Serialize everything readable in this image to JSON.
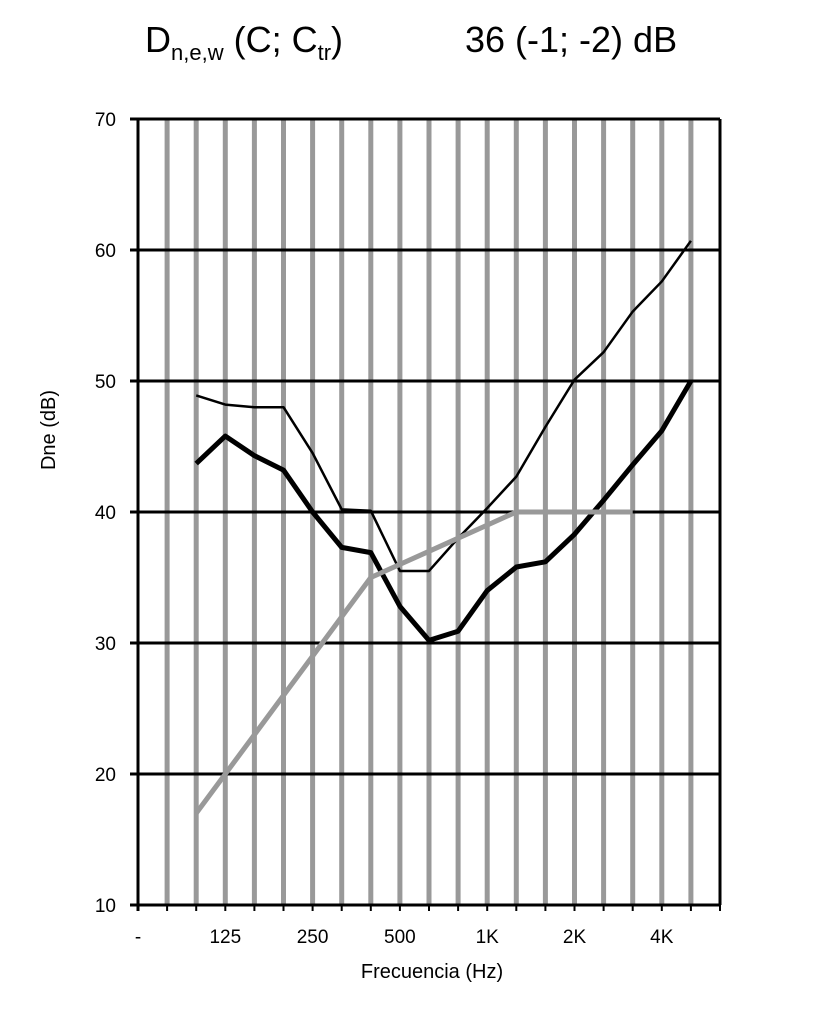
{
  "chart_data": {
    "type": "line",
    "title": {
      "base": "D",
      "sub1": "n,e,w",
      "mid": " (C; C",
      "sub2": "tr",
      "end": ")"
    },
    "rating": "36 (-1; -2) dB",
    "x_label": "Frecuencia (Hz)",
    "y_label": "Dne (dB)",
    "categories": [
      "-",
      null,
      null,
      "125",
      null,
      null,
      "250",
      null,
      null,
      "500",
      null,
      null,
      "1K",
      null,
      null,
      "2K",
      null,
      null,
      "4K",
      null,
      null
    ],
    "series": [
      {
        "color": "#000000",
        "width": 5,
        "values": [
          null,
          null,
          43.7,
          45.8,
          44.3,
          43.2,
          40,
          37.3,
          36.9,
          32.8,
          30.2,
          30.9,
          34,
          35.8,
          36.2,
          38.3,
          40.9,
          43.6,
          46.2,
          50,
          null
        ]
      },
      {
        "color": "#000000",
        "width": 2.5,
        "values": [
          null,
          null,
          48.9,
          48.2,
          48,
          48,
          44.5,
          40.2,
          40.1,
          35.5,
          35.5,
          38,
          40.3,
          42.7,
          46.5,
          50.1,
          52.2,
          55.3,
          57.6,
          60.7,
          null
        ]
      },
      {
        "color": "#999999",
        "width": 5,
        "values": [
          null,
          null,
          17,
          20,
          23,
          26,
          29,
          32,
          35,
          36,
          37,
          38,
          39,
          40,
          40,
          40,
          40,
          40,
          null,
          null,
          null
        ]
      }
    ],
    "ylim": [
      10,
      70
    ],
    "yticks": [
      10,
      20,
      30,
      40,
      50,
      60,
      70
    ],
    "grid": true
  }
}
